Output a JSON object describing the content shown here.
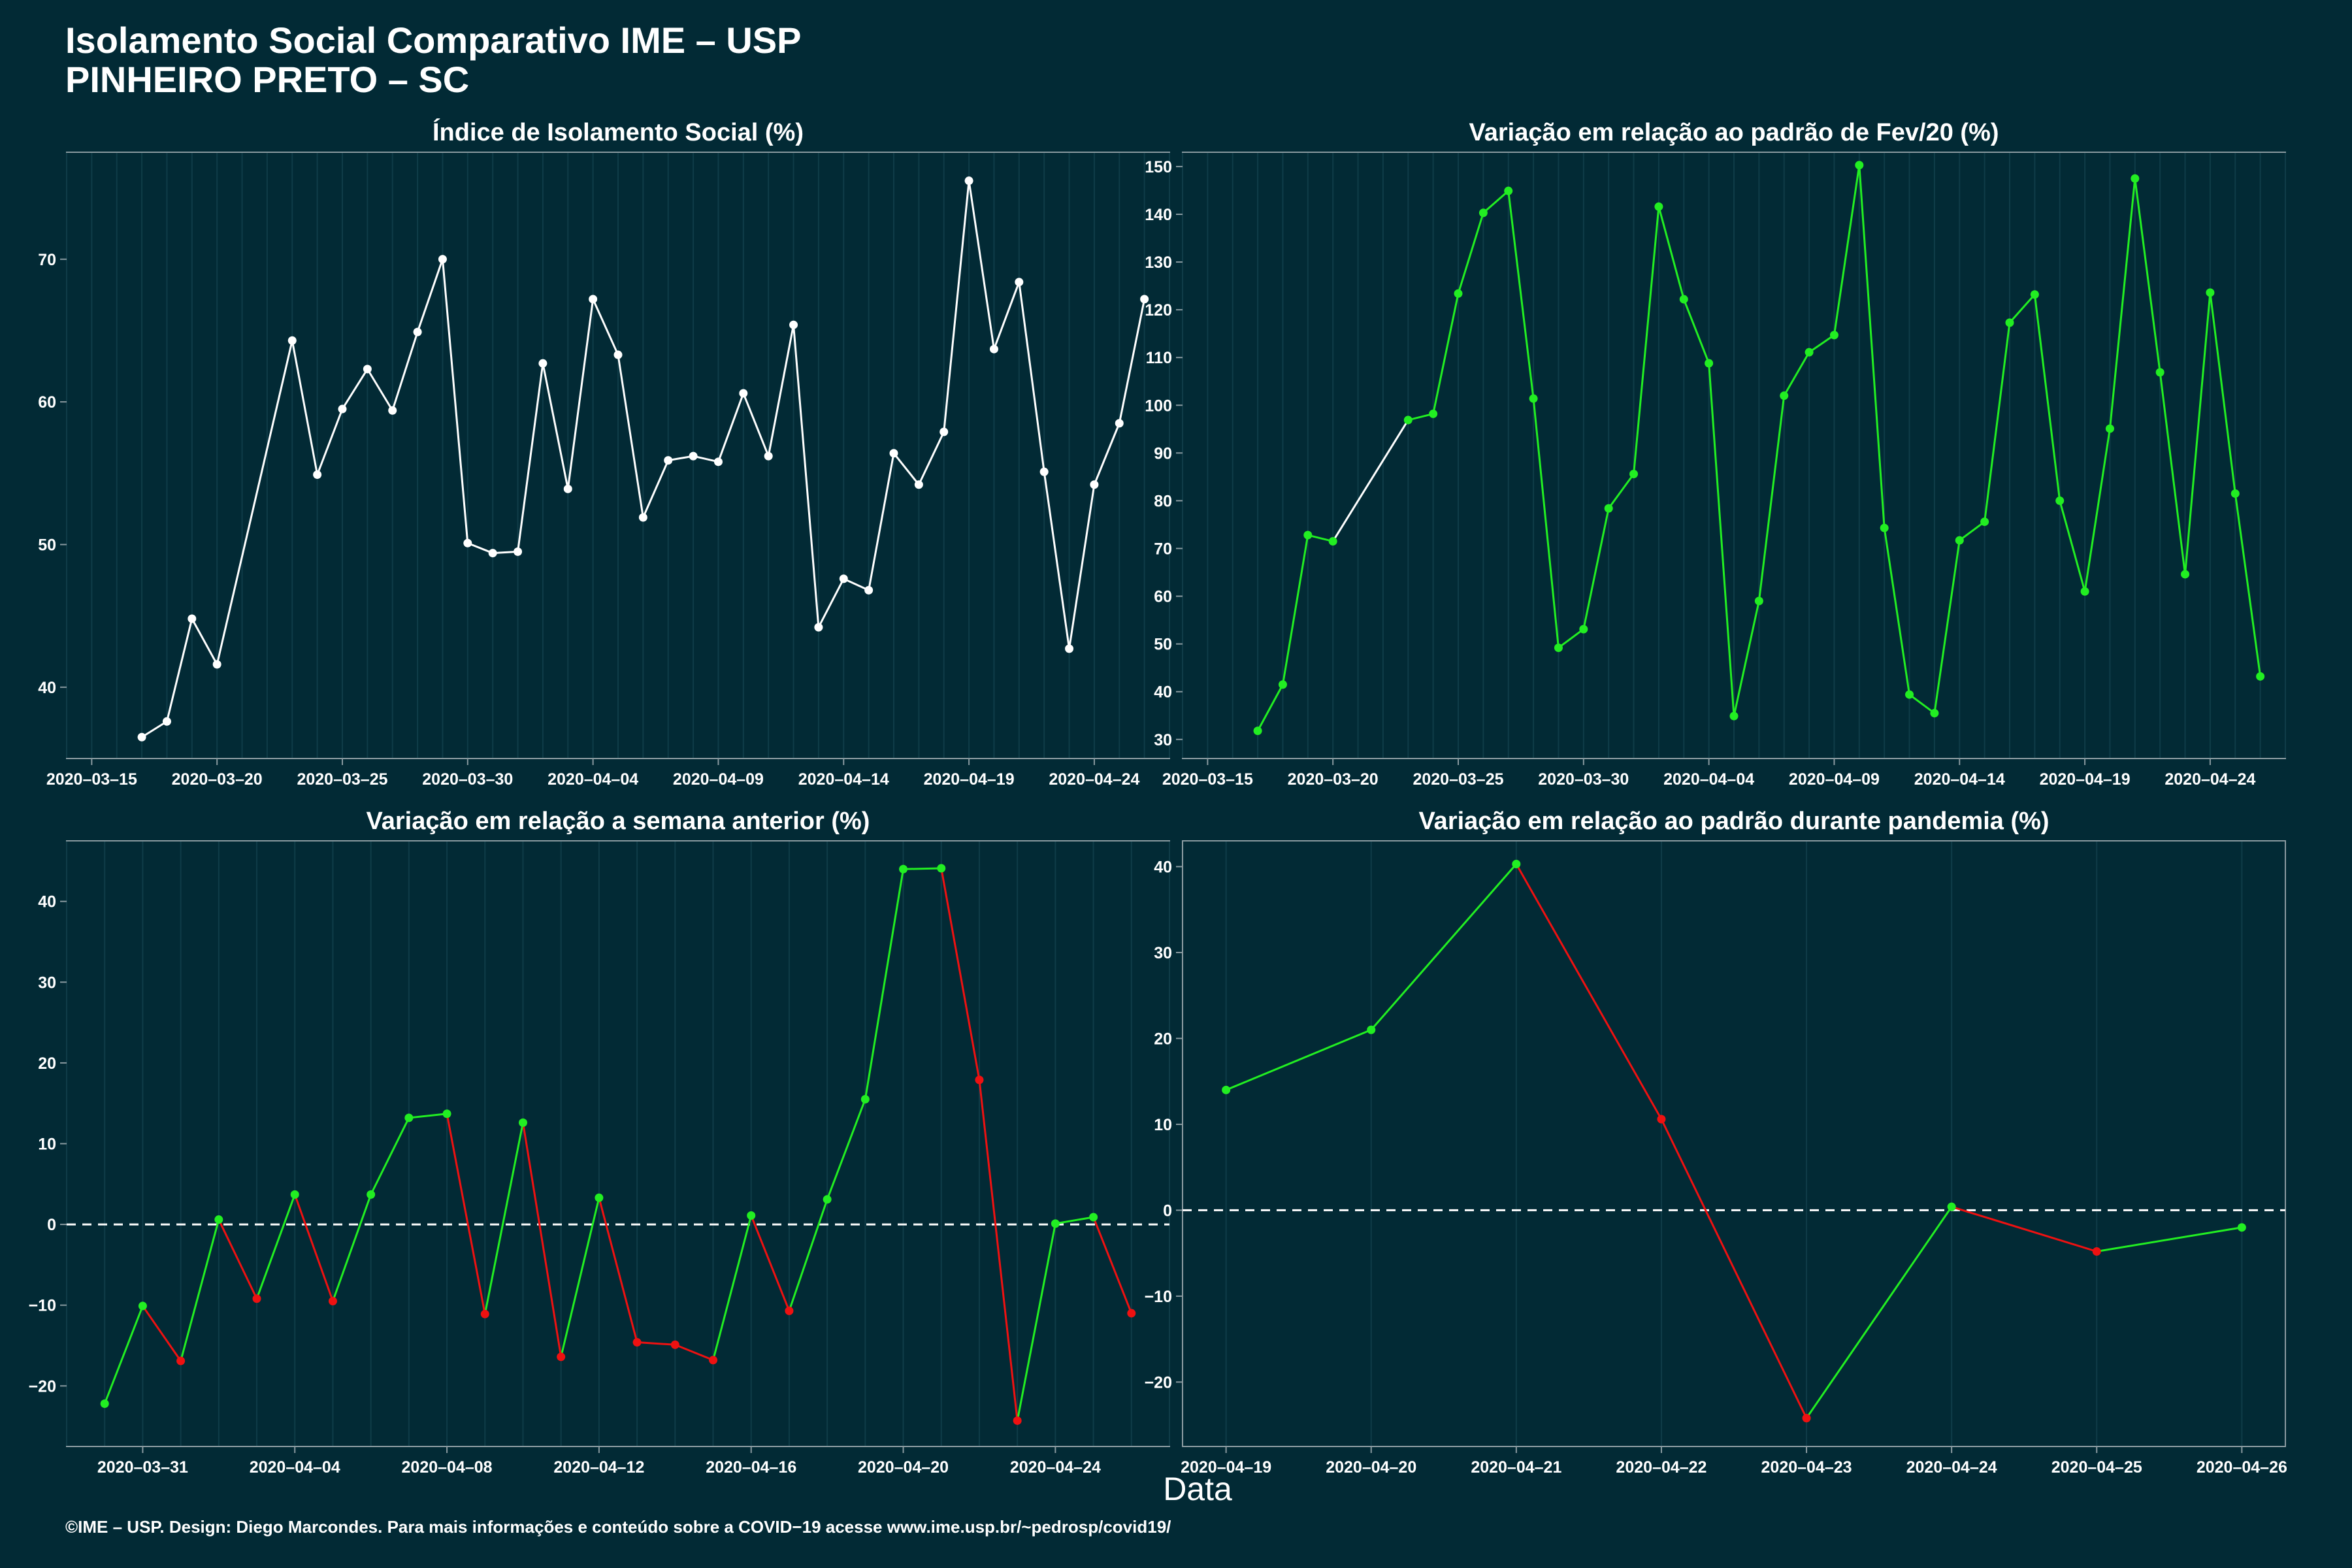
{
  "header": {
    "title_line1": "Isolamento Social Comparativo IME – USP",
    "title_line2": "PINHEIRO PRETO – SC"
  },
  "xlabel": "Data",
  "footer": "©IME – USP. Design: Diego Marcondes. Para mais informações e conteúdo sobre a COVID−19 acesse www.ime.usp.br/~pedrosp/covid19/",
  "colors": {
    "background": "#022a35",
    "white": "#ffffff",
    "up": "#22ee22",
    "down": "#ee1111",
    "grid": "#0f3c48",
    "axis": "#8a9aa0"
  },
  "chart_data": [
    {
      "type": "line",
      "title": "Índice de Isolamento Social (%)",
      "x": [
        "2020-03-17",
        "2020-03-18",
        "2020-03-19",
        "2020-03-20",
        "2020-03-23",
        "2020-03-24",
        "2020-03-25",
        "2020-03-26",
        "2020-03-27",
        "2020-03-28",
        "2020-03-29",
        "2020-03-30",
        "2020-03-31",
        "2020-04-01",
        "2020-04-02",
        "2020-04-03",
        "2020-04-04",
        "2020-04-05",
        "2020-04-06",
        "2020-04-07",
        "2020-04-08",
        "2020-04-09",
        "2020-04-10",
        "2020-04-11",
        "2020-04-12",
        "2020-04-13",
        "2020-04-14",
        "2020-04-15",
        "2020-04-16",
        "2020-04-17",
        "2020-04-18",
        "2020-04-19",
        "2020-04-20",
        "2020-04-21",
        "2020-04-22",
        "2020-04-23",
        "2020-04-24",
        "2020-04-25",
        "2020-04-26"
      ],
      "values": [
        36.5,
        37.6,
        44.8,
        41.6,
        64.3,
        54.9,
        59.5,
        62.3,
        59.4,
        64.9,
        70.0,
        50.1,
        49.4,
        49.5,
        62.7,
        53.9,
        67.2,
        63.3,
        51.9,
        55.9,
        56.2,
        55.8,
        60.6,
        56.2,
        65.4,
        44.2,
        47.6,
        46.8,
        56.4,
        54.2,
        57.9,
        75.5,
        63.7,
        68.4,
        55.1,
        42.7,
        54.2,
        58.5,
        67.2
      ],
      "xlim": [
        "2020-03-14",
        "2020-04-27"
      ],
      "ylim": [
        35,
        77.5
      ],
      "xticks": [
        "2020-03-15",
        "2020-03-20",
        "2020-03-25",
        "2020-03-30",
        "2020-04-04",
        "2020-04-09",
        "2020-04-14",
        "2020-04-19",
        "2020-04-24"
      ],
      "yticks": [
        40,
        50,
        60,
        70
      ]
    },
    {
      "type": "line",
      "title": "Variação em relação ao padrão de Fev/20 (%)",
      "x": [
        "2020-03-17",
        "2020-03-18",
        "2020-03-19",
        "2020-03-20",
        "2020-03-23",
        "2020-03-24",
        "2020-03-25",
        "2020-03-26",
        "2020-03-27",
        "2020-03-28",
        "2020-03-29",
        "2020-03-30",
        "2020-03-31",
        "2020-04-01",
        "2020-04-02",
        "2020-04-03",
        "2020-04-04",
        "2020-04-05",
        "2020-04-06",
        "2020-04-07",
        "2020-04-08",
        "2020-04-09",
        "2020-04-10",
        "2020-04-11",
        "2020-04-12",
        "2020-04-13",
        "2020-04-14",
        "2020-04-15",
        "2020-04-16",
        "2020-04-17",
        "2020-04-18",
        "2020-04-19",
        "2020-04-20",
        "2020-04-21",
        "2020-04-22",
        "2020-04-23",
        "2020-04-24",
        "2020-04-25",
        "2020-04-26"
      ],
      "values": [
        31.8,
        41.5,
        72.8,
        71.5,
        96.9,
        98.2,
        123.4,
        140.3,
        144.9,
        101.4,
        49.2,
        53.1,
        78.4,
        85.6,
        141.6,
        122.2,
        108.8,
        34.9,
        59.0,
        102.0,
        111.1,
        114.7,
        150.3,
        74.3,
        39.4,
        35.5,
        71.7,
        75.6,
        117.3,
        123.2,
        80.0,
        61.0,
        95.1,
        147.5,
        106.9,
        64.6,
        123.6,
        81.5,
        43.2
      ],
      "xlim": [
        "2020-03-14",
        "2020-04-27"
      ],
      "ylim": [
        26,
        153
      ],
      "xticks": [
        "2020-03-15",
        "2020-03-20",
        "2020-03-25",
        "2020-03-30",
        "2020-04-04",
        "2020-04-09",
        "2020-04-14",
        "2020-04-19",
        "2020-04-24"
      ],
      "yticks": [
        30,
        40,
        50,
        60,
        70,
        80,
        90,
        100,
        110,
        120,
        130,
        140,
        150
      ]
    },
    {
      "type": "line",
      "title": "Variação em relação a semana anterior (%)",
      "x": [
        "2020-03-30",
        "2020-03-31",
        "2020-04-01",
        "2020-04-02",
        "2020-04-03",
        "2020-04-04",
        "2020-04-05",
        "2020-04-06",
        "2020-04-07",
        "2020-04-08",
        "2020-04-09",
        "2020-04-10",
        "2020-04-11",
        "2020-04-12",
        "2020-04-13",
        "2020-04-14",
        "2020-04-15",
        "2020-04-16",
        "2020-04-17",
        "2020-04-18",
        "2020-04-19",
        "2020-04-20",
        "2020-04-21",
        "2020-04-22",
        "2020-04-23",
        "2020-04-24",
        "2020-04-25",
        "2020-04-26"
      ],
      "values": [
        -22.2,
        -10.1,
        -16.9,
        0.6,
        -9.2,
        3.7,
        -9.5,
        3.7,
        13.2,
        13.7,
        -11.1,
        12.6,
        -16.4,
        3.3,
        -14.6,
        -14.9,
        -16.8,
        1.1,
        -10.7,
        3.1,
        15.5,
        44.0,
        44.1,
        17.9,
        -24.3,
        0.1,
        0.9,
        -11.0
      ],
      "xlim": [
        "2020-03-29",
        "2020-04-27"
      ],
      "ylim": [
        -27.5,
        47.5
      ],
      "xticks": [
        "2020-03-31",
        "2020-04-04",
        "2020-04-08",
        "2020-04-12",
        "2020-04-16",
        "2020-04-20",
        "2020-04-24"
      ],
      "yticks": [
        -20,
        -10,
        0,
        10,
        20,
        30,
        40
      ],
      "reference_line": 0
    },
    {
      "type": "line",
      "title": "Variação em relação ao padrão durante pandemia (%)",
      "x": [
        "2020-04-19",
        "2020-04-20",
        "2020-04-21",
        "2020-04-22",
        "2020-04-23",
        "2020-04-24",
        "2020-04-25",
        "2020-04-26"
      ],
      "values": [
        14.0,
        21.0,
        40.3,
        10.6,
        -24.2,
        0.4,
        -4.8,
        -2.0
      ],
      "xlim": [
        "2020-04-18.7",
        "2020-04-26.3"
      ],
      "ylim": [
        -27.5,
        43
      ],
      "xticks": [
        "2020-04-19",
        "2020-04-20",
        "2020-04-21",
        "2020-04-22",
        "2020-04-23",
        "2020-04-24",
        "2020-04-25",
        "2020-04-26"
      ],
      "yticks": [
        -20,
        -10,
        0,
        10,
        20,
        30,
        40
      ],
      "reference_line": 0
    }
  ]
}
